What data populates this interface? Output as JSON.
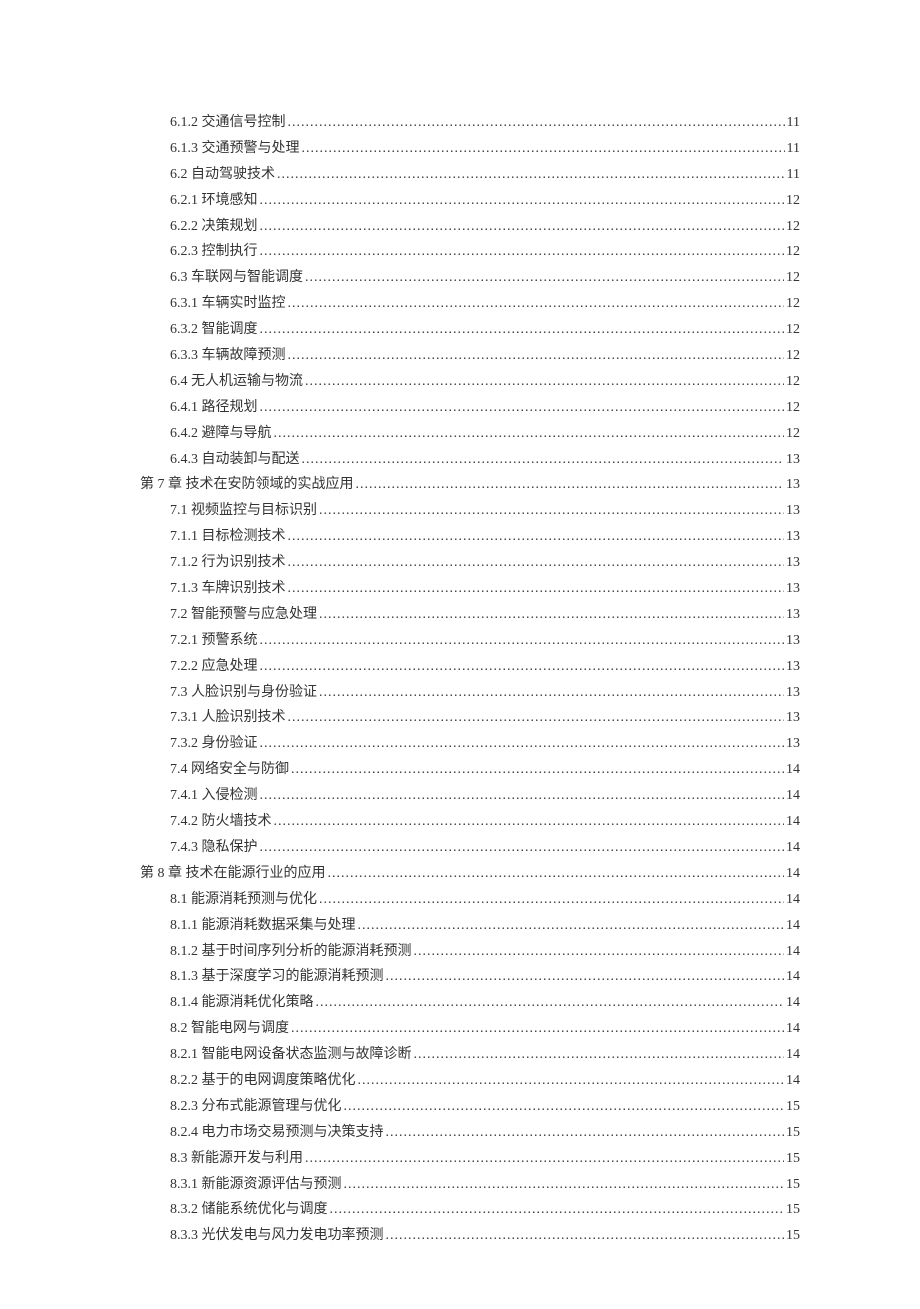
{
  "text_color": "#333333",
  "background_color": "#ffffff",
  "font_family": "SimSun",
  "font_size_pt": 10.5,
  "line_height": 1.85,
  "entries": [
    {
      "label": "6.1.2 交通信号控制",
      "page": "11",
      "indent": 2
    },
    {
      "label": "6.1.3 交通预警与处理",
      "page": "11",
      "indent": 2
    },
    {
      "label": "6.2 自动驾驶技术",
      "page": "11",
      "indent": 2
    },
    {
      "label": "6.2.1 环境感知",
      "page": "12",
      "indent": 2
    },
    {
      "label": "6.2.2 决策规划",
      "page": "12",
      "indent": 2
    },
    {
      "label": "6.2.3 控制执行",
      "page": "12",
      "indent": 2
    },
    {
      "label": "6.3 车联网与智能调度",
      "page": "12",
      "indent": 2
    },
    {
      "label": "6.3.1 车辆实时监控",
      "page": "12",
      "indent": 2
    },
    {
      "label": "6.3.2 智能调度",
      "page": "12",
      "indent": 2
    },
    {
      "label": "6.3.3 车辆故障预测",
      "page": "12",
      "indent": 2
    },
    {
      "label": "6.4 无人机运输与物流",
      "page": "12",
      "indent": 2
    },
    {
      "label": "6.4.1 路径规划",
      "page": "12",
      "indent": 2
    },
    {
      "label": "6.4.2 避障与导航",
      "page": "12",
      "indent": 2
    },
    {
      "label": "6.4.3 自动装卸与配送",
      "page": "13",
      "indent": 2
    },
    {
      "label": "第 7 章 技术在安防领域的实战应用",
      "page": "13",
      "indent": 1
    },
    {
      "label": "7.1 视频监控与目标识别",
      "page": "13",
      "indent": 2
    },
    {
      "label": "7.1.1 目标检测技术",
      "page": "13",
      "indent": 2
    },
    {
      "label": "7.1.2 行为识别技术",
      "page": "13",
      "indent": 2
    },
    {
      "label": "7.1.3 车牌识别技术",
      "page": "13",
      "indent": 2
    },
    {
      "label": "7.2 智能预警与应急处理",
      "page": "13",
      "indent": 2
    },
    {
      "label": "7.2.1 预警系统",
      "page": "13",
      "indent": 2
    },
    {
      "label": "7.2.2 应急处理",
      "page": "13",
      "indent": 2
    },
    {
      "label": "7.3 人脸识别与身份验证",
      "page": "13",
      "indent": 2
    },
    {
      "label": "7.3.1 人脸识别技术",
      "page": "13",
      "indent": 2
    },
    {
      "label": "7.3.2 身份验证",
      "page": "13",
      "indent": 2
    },
    {
      "label": "7.4 网络安全与防御",
      "page": "14",
      "indent": 2
    },
    {
      "label": "7.4.1 入侵检测",
      "page": "14",
      "indent": 2
    },
    {
      "label": "7.4.2 防火墙技术",
      "page": "14",
      "indent": 2
    },
    {
      "label": "7.4.3 隐私保护",
      "page": "14",
      "indent": 2
    },
    {
      "label": "第 8 章 技术在能源行业的应用",
      "page": "14",
      "indent": 1
    },
    {
      "label": "8.1 能源消耗预测与优化",
      "page": "14",
      "indent": 2
    },
    {
      "label": "8.1.1 能源消耗数据采集与处理",
      "page": "14",
      "indent": 2
    },
    {
      "label": "8.1.2 基于时间序列分析的能源消耗预测",
      "page": "14",
      "indent": 2
    },
    {
      "label": "8.1.3 基于深度学习的能源消耗预测",
      "page": "14",
      "indent": 2
    },
    {
      "label": "8.1.4 能源消耗优化策略",
      "page": "14",
      "indent": 2
    },
    {
      "label": "8.2 智能电网与调度",
      "page": "14",
      "indent": 2
    },
    {
      "label": "8.2.1 智能电网设备状态监测与故障诊断",
      "page": "14",
      "indent": 2
    },
    {
      "label": "8.2.2 基于的电网调度策略优化",
      "page": "14",
      "indent": 2
    },
    {
      "label": "8.2.3 分布式能源管理与优化",
      "page": "15",
      "indent": 2
    },
    {
      "label": "8.2.4 电力市场交易预测与决策支持",
      "page": "15",
      "indent": 2
    },
    {
      "label": "8.3 新能源开发与利用",
      "page": "15",
      "indent": 2
    },
    {
      "label": "8.3.1 新能源资源评估与预测",
      "page": "15",
      "indent": 2
    },
    {
      "label": "8.3.2 储能系统优化与调度",
      "page": "15",
      "indent": 2
    },
    {
      "label": "8.3.3 光伏发电与风力发电功率预测",
      "page": "15",
      "indent": 2
    }
  ]
}
